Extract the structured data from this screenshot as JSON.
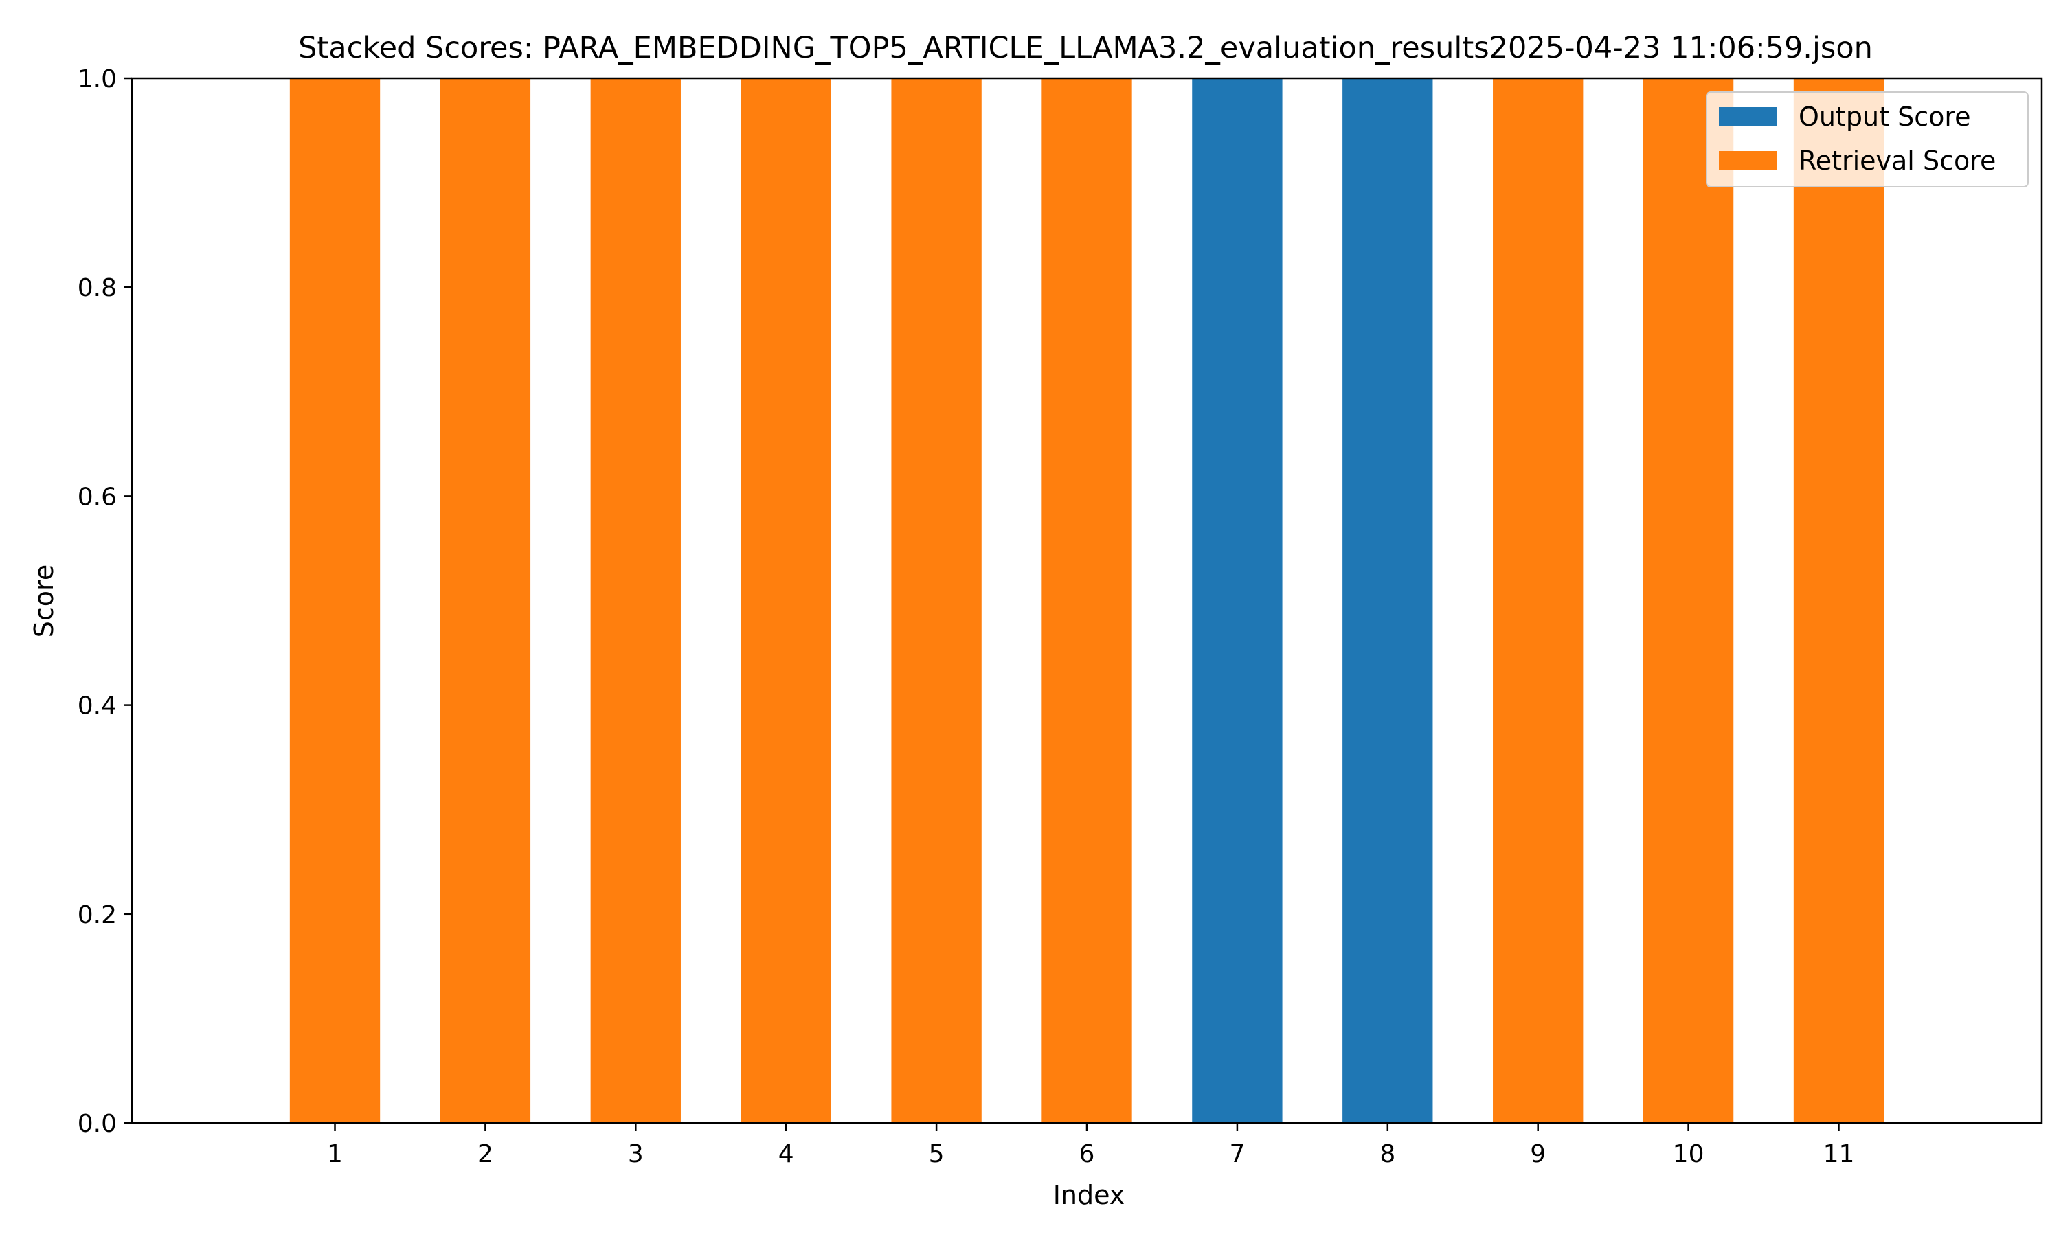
{
  "chart_data": {
    "type": "bar",
    "stacked": true,
    "title": "Stacked Scores: PARA_EMBEDDING_TOP5_ARTICLE_LLAMA3.2_evaluation_results2025-04-23 11:06:59.json",
    "xlabel": "Index",
    "ylabel": "Score",
    "ylim": [
      0,
      1
    ],
    "yticks": [
      "0.0",
      "0.2",
      "0.4",
      "0.6",
      "0.8",
      "1.0"
    ],
    "categories": [
      "1",
      "2",
      "3",
      "4",
      "5",
      "6",
      "7",
      "8",
      "9",
      "10",
      "11"
    ],
    "series": [
      {
        "name": "Output Score",
        "color": "#1f77b4",
        "values": [
          0,
          0,
          0,
          0,
          0,
          0,
          1,
          1,
          0,
          0,
          0
        ]
      },
      {
        "name": "Retrieval Score",
        "color": "#ff7f0e",
        "values": [
          1,
          1,
          1,
          1,
          1,
          1,
          0,
          0,
          1,
          1,
          1
        ]
      }
    ],
    "grid": false,
    "legend": "top-right"
  }
}
